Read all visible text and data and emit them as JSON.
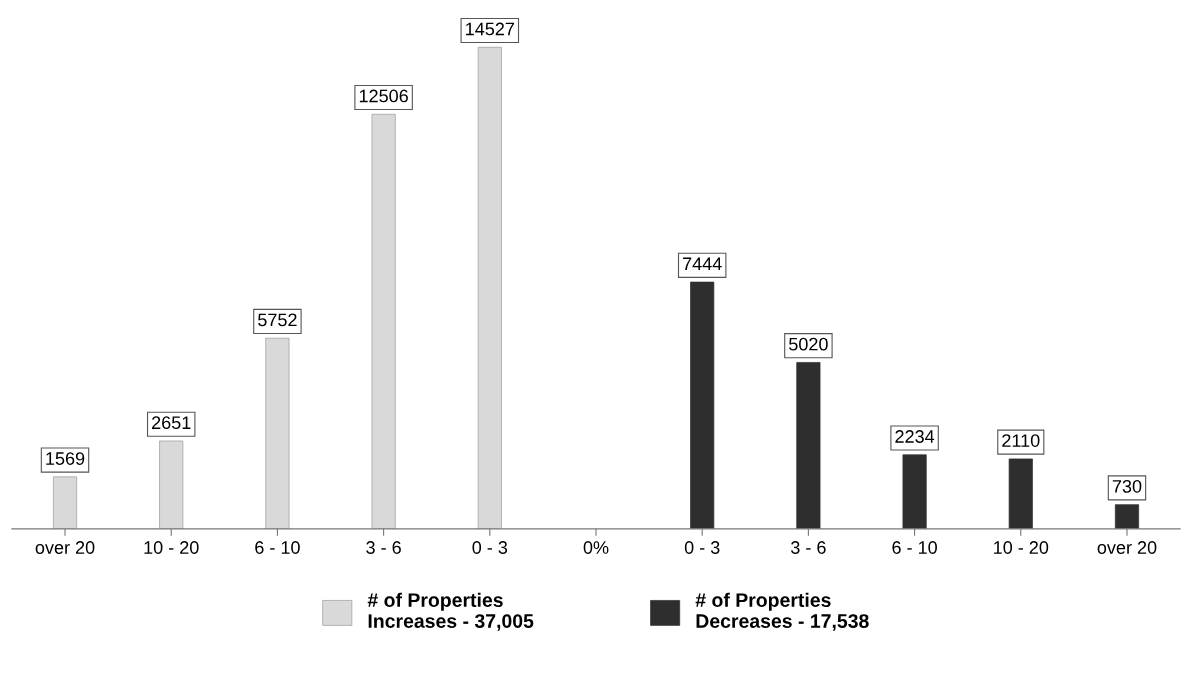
{
  "chart_data": {
    "type": "bar",
    "categories": [
      "over 20",
      "10 - 20",
      "6 - 10",
      "3 - 6",
      "0 - 3",
      "0%",
      "0 - 3",
      "3 - 6",
      "6 - 10",
      "10 - 20",
      "over 20"
    ],
    "series": [
      {
        "name": "# of Properties\nIncreases - 37,005",
        "color": "#d9d9d9",
        "values": [
          1569,
          2651,
          5752,
          12506,
          14527,
          null,
          null,
          null,
          null,
          null,
          null
        ]
      },
      {
        "name": "# of Properties\nDecreases - 17,538",
        "color": "#2e2e2e",
        "values": [
          null,
          null,
          null,
          null,
          null,
          null,
          7444,
          5020,
          2234,
          2110,
          730
        ]
      }
    ],
    "data_labels": true,
    "grid": false,
    "legend": "bottom",
    "tick_labels": "x"
  }
}
